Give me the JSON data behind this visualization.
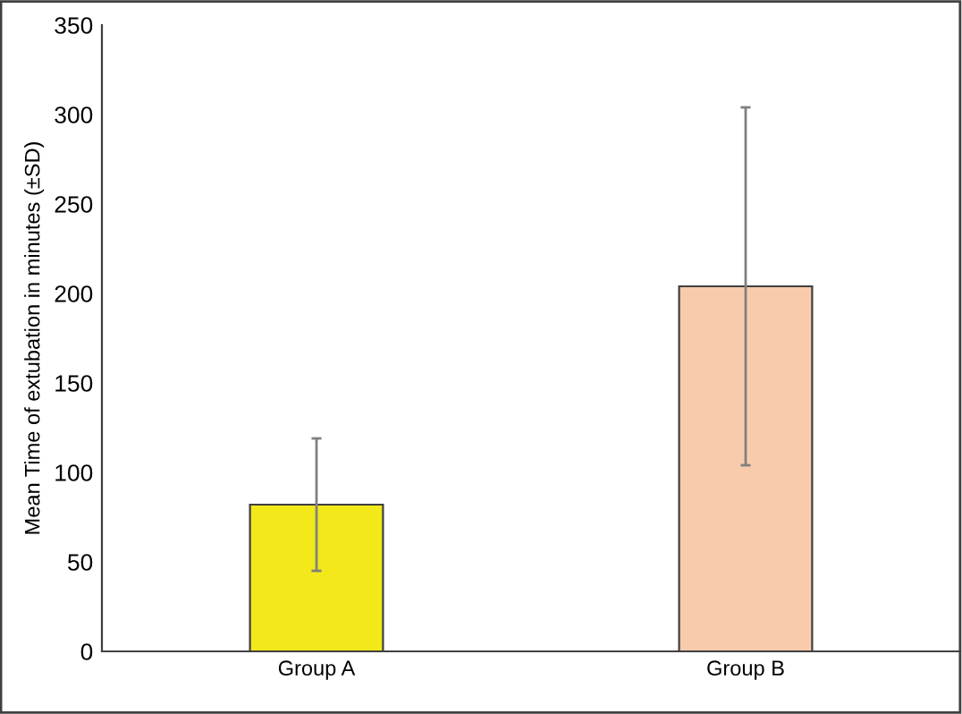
{
  "chart_data": {
    "type": "bar",
    "ylabel": "Mean Time of extubation in minutes (±SD)",
    "categories": [
      "Group A",
      "Group B"
    ],
    "values": [
      82,
      204
    ],
    "errors": [
      37,
      100
    ],
    "colors": [
      "#f2e81a",
      "#f8cbad"
    ],
    "ylim": [
      0,
      350
    ],
    "yticks": [
      0,
      50,
      100,
      150,
      200,
      250,
      300,
      350
    ],
    "grid": false,
    "legend": false
  }
}
